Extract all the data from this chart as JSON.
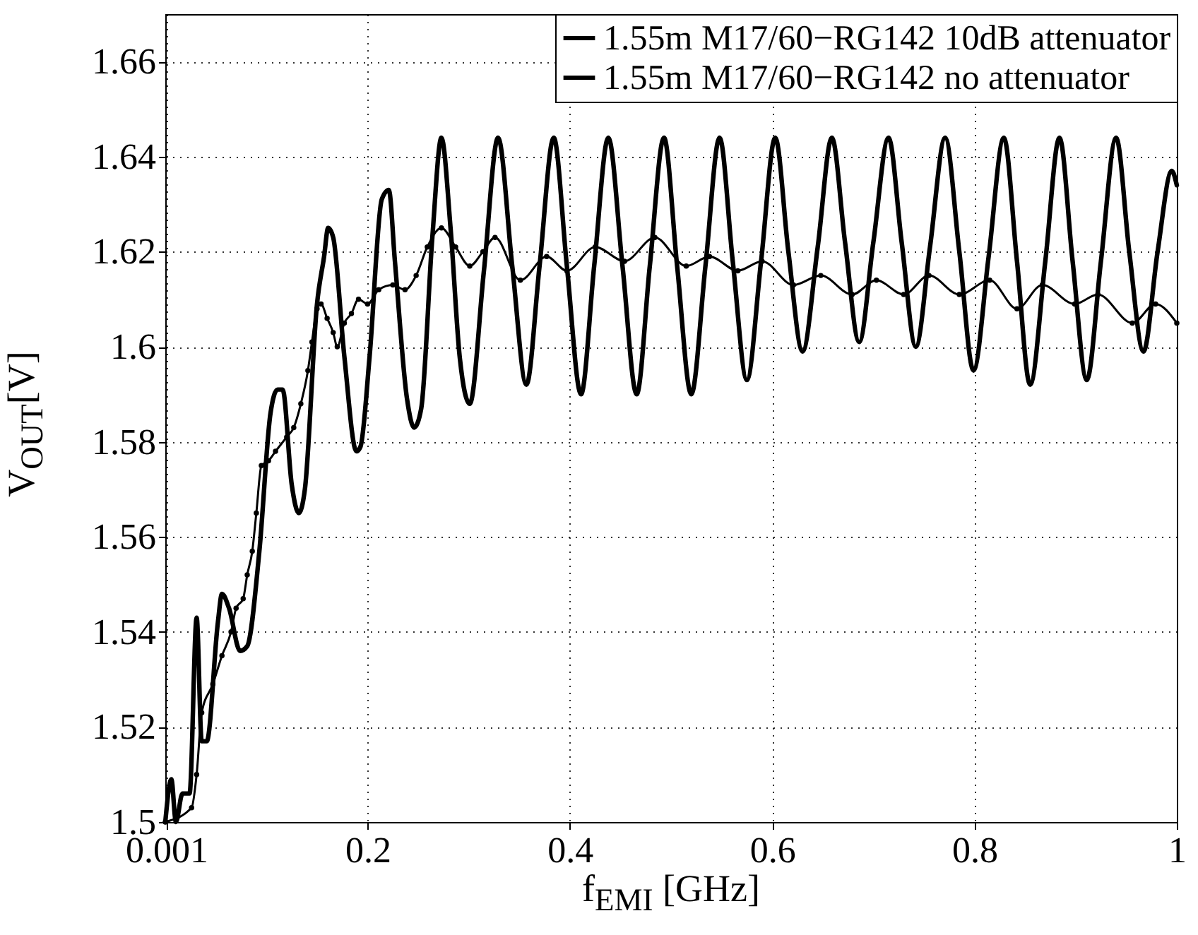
{
  "chart_data": {
    "type": "line",
    "xlabel": "f$_{EMI}$ [GHz]",
    "ylabel": "V$_{OUT}$[V]",
    "xlim": [
      0,
      1
    ],
    "xticks": [
      0.001,
      0.2,
      0.4,
      0.6,
      0.8,
      1
    ],
    "ylim": [
      1.5,
      1.67
    ],
    "yticks": [
      1.5,
      1.52,
      1.54,
      1.56,
      1.58,
      1.6,
      1.62,
      1.64,
      1.66
    ],
    "grid": true,
    "legend": "top right",
    "series": [
      {
        "name": "1.55m M17/60−RG142 10dB attenuator",
        "color": "#000000",
        "marker": "circle",
        "line_style": "solid",
        "x": [
          0,
          0.026,
          0.031,
          0.036,
          0.047,
          0.056,
          0.065,
          0.07,
          0.077,
          0.081,
          0.086,
          0.09,
          0.095,
          0.102,
          0.109,
          0.12,
          0.127,
          0.134,
          0.141,
          0.145,
          0.15,
          0.154,
          0.16,
          0.166,
          0.17,
          0.177,
          0.184,
          0.191,
          0.2,
          0.211,
          0.225,
          0.237,
          0.248,
          0.259,
          0.273,
          0.287,
          0.301,
          0.314,
          0.326,
          0.351,
          0.377,
          0.397,
          0.425,
          0.454,
          0.484,
          0.515,
          0.538,
          0.566,
          0.59,
          0.621,
          0.648,
          0.679,
          0.703,
          0.73,
          0.755,
          0.785,
          0.815,
          0.842,
          0.867,
          0.899,
          0.922,
          0.956,
          0.979,
          1.0
        ],
        "values": [
          1.5,
          1.503,
          1.51,
          1.523,
          1.529,
          1.535,
          1.54,
          1.545,
          1.547,
          1.552,
          1.557,
          1.565,
          1.575,
          1.576,
          1.578,
          1.581,
          1.583,
          1.588,
          1.595,
          1.601,
          1.608,
          1.609,
          1.606,
          1.603,
          1.6,
          1.605,
          1.607,
          1.61,
          1.609,
          1.612,
          1.613,
          1.612,
          1.615,
          1.621,
          1.625,
          1.621,
          1.617,
          1.62,
          1.623,
          1.614,
          1.619,
          1.616,
          1.621,
          1.618,
          1.623,
          1.617,
          1.619,
          1.616,
          1.618,
          1.613,
          1.615,
          1.611,
          1.614,
          1.611,
          1.615,
          1.611,
          1.614,
          1.608,
          1.613,
          1.609,
          1.611,
          1.605,
          1.609,
          1.605
        ]
      },
      {
        "name": "1.55m M17/60−RG142 no attenuator",
        "color": "#000000",
        "marker": "none",
        "line_style": "solid",
        "x": [
          0,
          0.006,
          0.0105,
          0.017,
          0.024,
          0.031,
          0.036,
          0.041,
          0.052,
          0.056,
          0.063,
          0.074,
          0.081,
          0.093,
          0.104,
          0.111,
          0.116,
          0.125,
          0.132,
          0.138,
          0.15,
          0.157,
          0.161,
          0.166,
          0.177,
          0.189,
          0.193,
          0.202,
          0.214,
          0.221,
          0.227,
          0.239,
          0.246,
          0.253,
          0.264,
          0.273,
          0.282,
          0.291,
          0.301,
          0.315,
          0.329,
          0.343,
          0.357,
          0.37,
          0.384,
          0.397,
          0.411,
          0.424,
          0.438,
          0.452,
          0.466,
          0.479,
          0.493,
          0.506,
          0.52,
          0.534,
          0.548,
          0.561,
          0.575,
          0.589,
          0.603,
          0.616,
          0.63,
          0.645,
          0.659,
          0.672,
          0.686,
          0.7,
          0.715,
          0.728,
          0.742,
          0.756,
          0.771,
          0.785,
          0.799,
          0.814,
          0.829,
          0.842,
          0.855,
          0.87,
          0.884,
          0.897,
          0.911,
          0.925,
          0.94,
          0.953,
          0.967,
          0.981,
          0.995,
          1.0
        ],
        "values": [
          1.5,
          1.509,
          1.5,
          1.506,
          1.506,
          1.543,
          1.517,
          1.517,
          1.542,
          1.548,
          1.545,
          1.536,
          1.537,
          1.557,
          1.586,
          1.591,
          1.591,
          1.571,
          1.565,
          1.57,
          1.609,
          1.619,
          1.625,
          1.623,
          1.598,
          1.578,
          1.579,
          1.598,
          1.631,
          1.633,
          1.618,
          1.589,
          1.583,
          1.587,
          1.623,
          1.644,
          1.625,
          1.598,
          1.588,
          1.616,
          1.644,
          1.617,
          1.592,
          1.617,
          1.644,
          1.617,
          1.59,
          1.617,
          1.644,
          1.617,
          1.59,
          1.617,
          1.644,
          1.617,
          1.59,
          1.617,
          1.644,
          1.618,
          1.593,
          1.618,
          1.644,
          1.62,
          1.599,
          1.621,
          1.644,
          1.622,
          1.601,
          1.622,
          1.644,
          1.622,
          1.6,
          1.621,
          1.644,
          1.62,
          1.595,
          1.619,
          1.644,
          1.618,
          1.592,
          1.618,
          1.644,
          1.618,
          1.593,
          1.618,
          1.644,
          1.62,
          1.599,
          1.62,
          1.637,
          1.634
        ]
      }
    ]
  }
}
